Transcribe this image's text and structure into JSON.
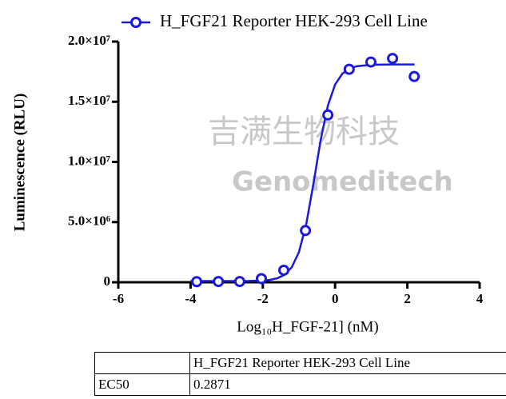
{
  "chart_data": {
    "type": "scatter",
    "legend": "H_FGF21 Reporter HEK-293 Cell Line",
    "xlabel": "Log₁₀H_FGF-21] (nM)",
    "ylabel": "Luminescence (RLU)",
    "color": "#1a1adb",
    "x": [
      -3.83,
      -3.23,
      -2.64,
      -2.04,
      -1.42,
      -0.82,
      -0.2,
      0.39,
      0.99,
      1.59,
      2.19
    ],
    "values": [
      50000,
      60000,
      60000,
      300000,
      1000000,
      4300000,
      13900000,
      17700000,
      18300000,
      18600000,
      17100000
    ],
    "curve": {
      "x": [
        -4,
        -3.6,
        -3.2,
        -2.8,
        -2.4,
        -2.0,
        -1.8,
        -1.6,
        -1.4,
        -1.2,
        -1.0,
        -0.8,
        -0.6,
        -0.4,
        -0.2,
        0.0,
        0.2,
        0.4,
        0.6,
        1.0,
        1.6,
        2.2
      ],
      "values": [
        100000,
        100000,
        100000,
        100000,
        108000,
        144000,
        200000,
        330000,
        620000,
        1240000,
        2510000,
        4810000,
        8170000,
        11810000,
        14680000,
        16430000,
        17330000,
        17760000,
        17950000,
        18070000,
        18100000,
        18100000
      ]
    },
    "xlim": [
      -6,
      4
    ],
    "xticks": [
      -6,
      -4,
      -2,
      0,
      2,
      4
    ],
    "ylim": [
      0,
      20000000
    ],
    "yticks": [
      {
        "value": 0,
        "label": "0"
      },
      {
        "value": 5000000,
        "label": "5.0×10⁶"
      },
      {
        "value": 10000000,
        "label": "1.0×10⁷"
      },
      {
        "value": 15000000,
        "label": "1.5×10⁷"
      },
      {
        "value": 20000000,
        "label": "2.0×10⁷"
      }
    ],
    "watermark": [
      "吉满生物科技",
      "Genomeditech"
    ]
  },
  "table": {
    "header": [
      "H_FGF21 Reporter HEK-293 Cell Line"
    ],
    "rows": [
      [
        "EC50",
        "0.2871"
      ]
    ]
  }
}
